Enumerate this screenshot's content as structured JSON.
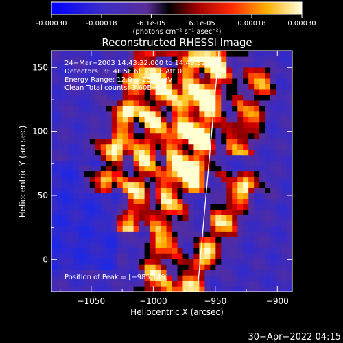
{
  "colorbar": {
    "tick_labels": [
      "-0.00030",
      "-0.00018",
      "-6.1e-05",
      "6.1e-05",
      "0.00018",
      "0.00030"
    ],
    "tick_values": [
      -0.0003,
      -0.00018,
      -6.1e-05,
      6.1e-05,
      0.00018,
      0.0003
    ],
    "range": [
      -0.0003,
      0.0003
    ],
    "unit_label": "(photons cm⁻² s⁻¹ asec⁻²)"
  },
  "chart_data": {
    "type": "heatmap",
    "title": "Reconstructed RHESSI Image",
    "xlabel": "Heliocentric X (arcsec)",
    "ylabel": "Heliocentric Y (arcsec)",
    "xlim": [
      -1082,
      -888
    ],
    "ylim": [
      -25,
      163
    ],
    "x_ticks": [
      -1050,
      -1000,
      -950,
      -900
    ],
    "x_tick_labels": [
      "−1050",
      "−1000",
      "−950",
      "−900"
    ],
    "y_ticks": [
      0,
      50,
      100,
      150
    ],
    "y_tick_labels": [
      "0",
      "50",
      "100",
      "150"
    ],
    "annotations": [
      "24−Mar−2003 14:43:32.000 to 14:49:32.000",
      "Detectors: 3F 4F 5F 6F 7F 8F Att 0",
      "Energy Range: 12.0 − 25.0 keV",
      "Clean     Total counts: 3.60E+03"
    ],
    "peak_label": "Position of Peak = [−985,149]",
    "peak_position": [
      -985,
      149
    ],
    "limb_line": [
      [
        -964,
        -20
      ],
      [
        -947,
        163
      ]
    ],
    "hot_ridges": [
      {
        "x_start": -1040,
        "x_end": -1003,
        "y_range": [
          60,
          163
        ],
        "peak": 0.95
      },
      {
        "x_start": -1018,
        "x_end": -990,
        "y_range": [
          30,
          140
        ],
        "peak": 0.8
      },
      {
        "x_start": -1000,
        "x_end": -965,
        "y_range": [
          -25,
          163
        ],
        "peak": 0.85
      },
      {
        "x_start": -968,
        "x_end": -945,
        "y_range": [
          60,
          163
        ],
        "peak": 1.0
      },
      {
        "x_start": -975,
        "x_end": -925,
        "y_range": [
          -25,
          60
        ],
        "peak": 0.9
      },
      {
        "x_start": -930,
        "x_end": -915,
        "y_range": [
          90,
          140
        ],
        "peak": 0.75
      }
    ]
  },
  "footer": {
    "timestamp": "30−Apr−2022 04:15"
  }
}
